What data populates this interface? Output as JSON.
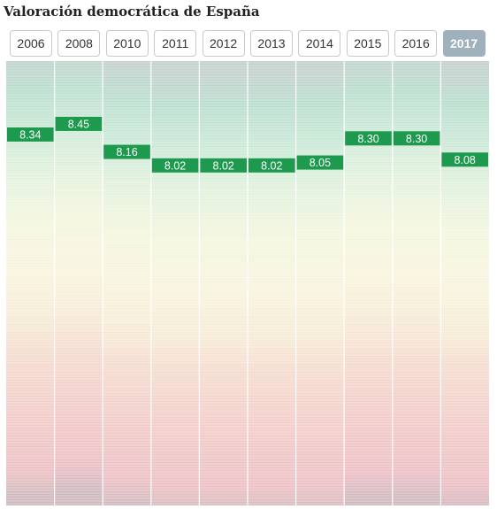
{
  "title": "Valoración democrática de España",
  "selected_year": "2017",
  "colors": {
    "value_badge": "#1e9a4f",
    "scale_high": "#bfe3d1",
    "scale_mid": "#f7f5d8",
    "scale_low": "#f2c9c5",
    "active_button": "#9fb1bd"
  },
  "years": [
    "2006",
    "2008",
    "2010",
    "2011",
    "2012",
    "2013",
    "2014",
    "2015",
    "2016",
    "2017"
  ],
  "chart_data": {
    "type": "bar",
    "title": "Valoración democrática de España",
    "categories": [
      "2006",
      "2008",
      "2010",
      "2011",
      "2012",
      "2013",
      "2014",
      "2015",
      "2016",
      "2017"
    ],
    "values": [
      8.34,
      8.45,
      8.16,
      8.02,
      8.02,
      8.02,
      8.05,
      8.3,
      8.3,
      8.08
    ],
    "labels": [
      "8.34",
      "8.45",
      "8.16",
      "8.02",
      "8.02",
      "8.02",
      "8.05",
      "8.30",
      "8.30",
      "8.08"
    ],
    "ylim": [
      4.5,
      9.1
    ],
    "grid": true
  }
}
